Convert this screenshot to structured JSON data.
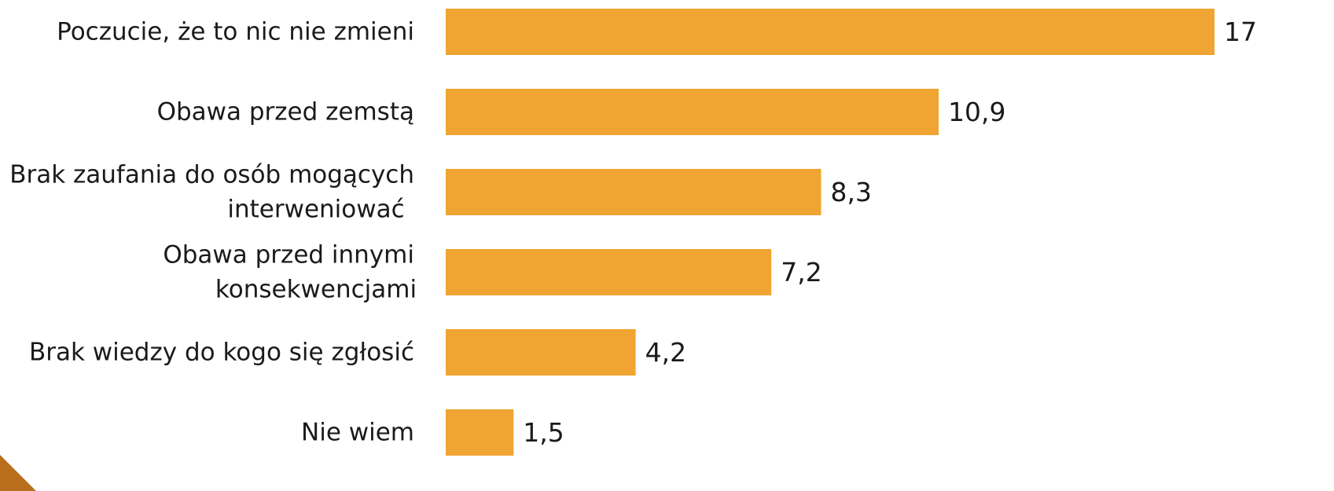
{
  "chart_data": {
    "type": "bar",
    "orientation": "horizontal",
    "categories": [
      [
        "Poczucie, że to nic nie zmieni"
      ],
      [
        "Obawa przed zemstą"
      ],
      [
        "Brak zaufania do osób mogących",
        "interweniować"
      ],
      [
        "Obawa przed innymi",
        "konsekwencjami"
      ],
      [
        "Brak wiedzy do kogo się zgłosić"
      ],
      [
        "Nie wiem"
      ]
    ],
    "values": [
      17,
      10.9,
      8.3,
      7.2,
      4.2,
      1.5
    ],
    "value_labels": [
      "17",
      "10,9",
      "8,3",
      "7,2",
      "4,2",
      "1,5"
    ],
    "xlim": [
      0,
      17
    ],
    "grid": false,
    "legend": "none",
    "bar_color": "#f0a431"
  },
  "decoration": {
    "corner_color": "#b86e1c"
  }
}
